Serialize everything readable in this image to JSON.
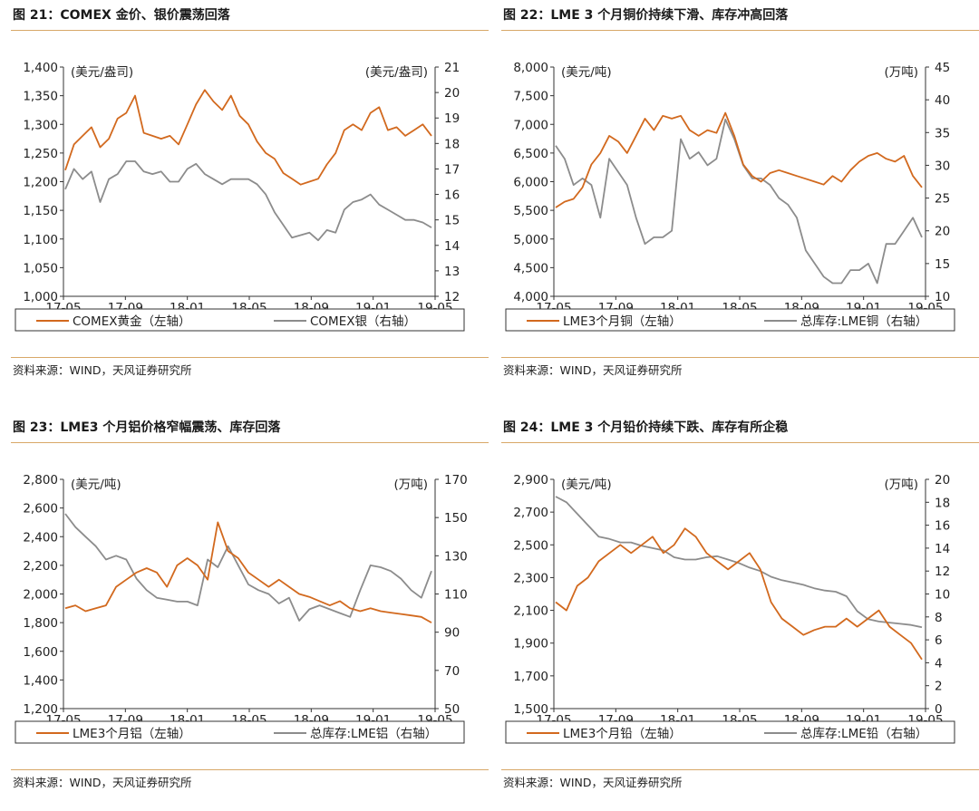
{
  "panels": [
    {
      "title": "图 21：COMEX 金价、银价震荡回落",
      "source": "资料来源：WIND，天风证券研究所",
      "chart_data": {
        "type": "line",
        "x_labels": [
          "17-05",
          "17-09",
          "18-01",
          "18-05",
          "18-09",
          "19-01",
          "19-05"
        ],
        "left_unit": "(美元/盎司)",
        "right_unit": "(美元/盎司)",
        "left_ticks": [
          "1,000",
          "1,050",
          "1,100",
          "1,150",
          "1,200",
          "1,250",
          "1,300",
          "1,350",
          "1,400"
        ],
        "right_ticks": [
          "12",
          "13",
          "14",
          "15",
          "16",
          "17",
          "18",
          "19",
          "20",
          "21"
        ],
        "ylim_left": [
          1000,
          1400
        ],
        "ylim_right": [
          12,
          21
        ],
        "series": [
          {
            "name": "COMEX黄金（左轴）",
            "axis": "left",
            "color": "#d2691e",
            "values": [
              1220,
              1265,
              1280,
              1295,
              1260,
              1275,
              1310,
              1320,
              1350,
              1285,
              1280,
              1275,
              1280,
              1265,
              1300,
              1335,
              1360,
              1340,
              1325,
              1350,
              1315,
              1300,
              1270,
              1250,
              1240,
              1215,
              1205,
              1195,
              1200,
              1205,
              1230,
              1250,
              1290,
              1300,
              1290,
              1320,
              1330,
              1290,
              1295,
              1280,
              1290,
              1300,
              1280
            ]
          },
          {
            "name": "COMEX银（右轴）",
            "axis": "right",
            "color": "#8c8c8c",
            "values": [
              16.2,
              17.0,
              16.6,
              16.9,
              15.7,
              16.6,
              16.8,
              17.3,
              17.3,
              16.9,
              16.8,
              16.9,
              16.5,
              16.5,
              17.0,
              17.2,
              16.8,
              16.6,
              16.4,
              16.6,
              16.6,
              16.6,
              16.4,
              16.0,
              15.3,
              14.8,
              14.3,
              14.4,
              14.5,
              14.2,
              14.6,
              14.5,
              15.4,
              15.7,
              15.8,
              16.0,
              15.6,
              15.4,
              15.2,
              15.0,
              15.0,
              14.9,
              14.7
            ]
          }
        ]
      }
    },
    {
      "title": "图 22：LME 3 个月铜价持续下滑、库存冲高回落",
      "source": "资料来源：WIND，天风证券研究所",
      "chart_data": {
        "type": "line",
        "x_labels": [
          "17-05",
          "17-09",
          "18-01",
          "18-05",
          "18-09",
          "19-01",
          "19-05"
        ],
        "left_unit": "(美元/吨)",
        "right_unit": "(万吨)",
        "left_ticks": [
          "4,000",
          "4,500",
          "5,000",
          "5,500",
          "6,000",
          "6,500",
          "7,000",
          "7,500",
          "8,000"
        ],
        "right_ticks": [
          "10",
          "15",
          "20",
          "25",
          "30",
          "35",
          "40",
          "45"
        ],
        "ylim_left": [
          4000,
          8000
        ],
        "ylim_right": [
          10,
          45
        ],
        "series": [
          {
            "name": "LME3个月铜（左轴）",
            "axis": "left",
            "color": "#d2691e",
            "values": [
              5550,
              5650,
              5700,
              5900,
              6300,
              6500,
              6800,
              6700,
              6500,
              6800,
              7100,
              6900,
              7150,
              7100,
              7150,
              6900,
              6800,
              6900,
              6850,
              7200,
              6800,
              6300,
              6100,
              6000,
              6150,
              6200,
              6150,
              6100,
              6050,
              6000,
              5950,
              6100,
              6000,
              6200,
              6350,
              6450,
              6500,
              6400,
              6350,
              6450,
              6100,
              5900
            ]
          },
          {
            "name": "总库存:LME铜（右轴）",
            "axis": "right",
            "color": "#8c8c8c",
            "values": [
              33,
              31,
              27,
              28,
              27,
              22,
              31,
              29,
              27,
              22,
              18,
              19,
              19,
              20,
              34,
              31,
              32,
              30,
              31,
              37,
              34,
              30,
              28,
              28,
              27,
              25,
              24,
              22,
              17,
              15,
              13,
              12,
              12,
              14,
              14,
              15,
              12,
              18,
              18,
              20,
              22,
              19
            ]
          }
        ]
      }
    },
    {
      "title": "图 23：LME3 个月铝价格窄幅震荡、库存回落",
      "source": "资料来源：WIND，天风证券研究所",
      "chart_data": {
        "type": "line",
        "x_labels": [
          "17-05",
          "17-09",
          "18-01",
          "18-05",
          "18-09",
          "19-01",
          "19-05"
        ],
        "left_unit": "(美元/吨)",
        "right_unit": "(万吨)",
        "left_ticks": [
          "1,200",
          "1,400",
          "1,600",
          "1,800",
          "2,000",
          "2,200",
          "2,400",
          "2,600",
          "2,800"
        ],
        "right_ticks": [
          "50",
          "70",
          "90",
          "110",
          "130",
          "150",
          "170"
        ],
        "ylim_left": [
          1200,
          2800
        ],
        "ylim_right": [
          50,
          170
        ],
        "series": [
          {
            "name": "LME3个月铝（左轴）",
            "axis": "left",
            "color": "#d2691e",
            "values": [
              1900,
              1920,
              1880,
              1900,
              1920,
              2050,
              2100,
              2150,
              2180,
              2150,
              2050,
              2200,
              2250,
              2200,
              2100,
              2500,
              2300,
              2250,
              2150,
              2100,
              2050,
              2100,
              2050,
              2000,
              1980,
              1950,
              1920,
              1950,
              1900,
              1880,
              1900,
              1880,
              1870,
              1860,
              1850,
              1840,
              1800
            ]
          },
          {
            "name": "总库存:LME铝（右轴）",
            "axis": "right",
            "color": "#8c8c8c",
            "values": [
              152,
              145,
              140,
              135,
              128,
              130,
              128,
              118,
              112,
              108,
              107,
              106,
              106,
              104,
              128,
              124,
              135,
              125,
              115,
              112,
              110,
              105,
              108,
              96,
              102,
              104,
              102,
              100,
              98,
              112,
              125,
              124,
              122,
              118,
              112,
              108,
              122
            ]
          }
        ]
      }
    },
    {
      "title": "图 24：LME 3 个月铅价持续下跌、库存有所企稳",
      "source": "资料来源：WIND，天风证券研究所",
      "chart_data": {
        "type": "line",
        "x_labels": [
          "17-05",
          "17-09",
          "18-01",
          "18-05",
          "18-09",
          "19-01",
          "19-05"
        ],
        "left_unit": "(美元/吨)",
        "right_unit": "(万吨)",
        "left_ticks": [
          "1,500",
          "1,700",
          "1,900",
          "2,100",
          "2,300",
          "2,500",
          "2,700",
          "2,900"
        ],
        "right_ticks": [
          "0",
          "2",
          "4",
          "6",
          "8",
          "10",
          "12",
          "14",
          "16",
          "18",
          "20"
        ],
        "ylim_left": [
          1500,
          2900
        ],
        "ylim_right": [
          0,
          20
        ],
        "series": [
          {
            "name": "LME3个月铅（左轴）",
            "axis": "left",
            "color": "#d2691e",
            "values": [
              2150,
              2100,
              2250,
              2300,
              2400,
              2450,
              2500,
              2450,
              2500,
              2550,
              2450,
              2500,
              2600,
              2550,
              2450,
              2400,
              2350,
              2400,
              2450,
              2350,
              2150,
              2050,
              2000,
              1950,
              1980,
              2000,
              2000,
              2050,
              2000,
              2050,
              2100,
              2000,
              1950,
              1900,
              1800
            ]
          },
          {
            "name": "总库存:LME铅（右轴）",
            "axis": "right",
            "color": "#8c8c8c",
            "values": [
              18.5,
              18,
              17,
              16,
              15,
              14.8,
              14.5,
              14.5,
              14.2,
              14,
              13.8,
              13.2,
              13,
              13,
              13.2,
              13.3,
              13,
              12.7,
              12.3,
              12,
              11.5,
              11.2,
              11,
              10.8,
              10.5,
              10.3,
              10.2,
              9.8,
              8.5,
              7.8,
              7.6,
              7.5,
              7.4,
              7.3,
              7.1
            ]
          }
        ]
      }
    }
  ]
}
